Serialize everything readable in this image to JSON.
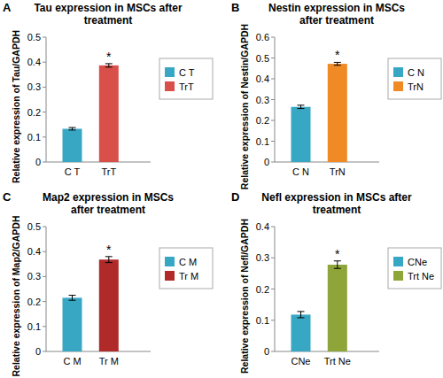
{
  "chart_data": [
    {
      "type": "bar",
      "panel": "A",
      "title": [
        "Tau expression in MSCs after",
        "treatment"
      ],
      "y_label": "Relative expression of Tau/GAPDH",
      "categories": [
        "C T",
        "TrT"
      ],
      "values": [
        0.133,
        0.387
      ],
      "errors": [
        0.005,
        0.007
      ],
      "colors": [
        "#38a7c4",
        "#d9504a"
      ],
      "ylim": [
        0,
        0.5
      ],
      "yticks": [
        0,
        0.1,
        0.2,
        0.3,
        0.4,
        0.5
      ],
      "legend": "right",
      "annotations": [
        {
          "text": "*",
          "category": "TrT"
        }
      ]
    },
    {
      "type": "bar",
      "panel": "B",
      "title": [
        "Nestin expression in MSCs",
        "after treatment"
      ],
      "y_label": "Relative expression of Nestin/GAPDH",
      "categories": [
        "C N",
        "TrN"
      ],
      "values": [
        0.265,
        0.472
      ],
      "errors": [
        0.008,
        0.007
      ],
      "colors": [
        "#38a7c4",
        "#f08a24"
      ],
      "ylim": [
        0,
        0.6
      ],
      "yticks": [
        0,
        0.1,
        0.2,
        0.3,
        0.4,
        0.5,
        0.6
      ],
      "legend": "right",
      "annotations": [
        {
          "text": "*",
          "category": "TrN"
        }
      ]
    },
    {
      "type": "bar",
      "panel": "C",
      "title": [
        "Map2 expression in MSCs",
        "after treatment"
      ],
      "y_label": "Relative expression of Map2/GAPDH",
      "categories": [
        "C M",
        "Tr M"
      ],
      "values": [
        0.215,
        0.368
      ],
      "errors": [
        0.01,
        0.012
      ],
      "colors": [
        "#38a7c4",
        "#b02a2a"
      ],
      "ylim": [
        0,
        0.5
      ],
      "yticks": [
        0,
        0.1,
        0.2,
        0.3,
        0.4,
        0.5
      ],
      "legend": "right",
      "annotations": [
        {
          "text": "*",
          "category": "Tr M"
        }
      ]
    },
    {
      "type": "bar",
      "panel": "D",
      "title": [
        "Nefl expression in MSCs after",
        "treatment"
      ],
      "y_label": "Relative expression of Nefl/GAPDH",
      "categories": [
        "CNe",
        "Trt Ne"
      ],
      "values": [
        0.118,
        0.278
      ],
      "errors": [
        0.01,
        0.012
      ],
      "colors": [
        "#38a7c4",
        "#8ea53a"
      ],
      "ylim": [
        0,
        0.4
      ],
      "yticks": [
        0,
        0.1,
        0.2,
        0.3,
        0.4
      ],
      "legend": "right",
      "annotations": [
        {
          "text": "*",
          "category": "Trt Ne"
        }
      ]
    }
  ]
}
